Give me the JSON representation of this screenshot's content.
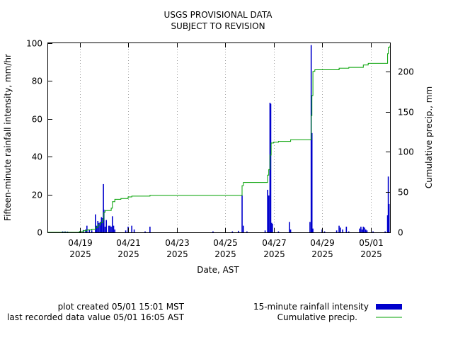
{
  "chart_data": {
    "type": "bar",
    "title_lines": [
      "USGS PROVISIONAL DATA",
      "SUBJECT TO REVISION"
    ],
    "xlabel": "Date, AST",
    "ylabel": "Fifteen-minute rainfall intensity, mm/hr",
    "y2label": "Cumulative precip., mm",
    "xlim_days": [
      0,
      14.1
    ],
    "ylim": [
      0,
      100
    ],
    "y2lim": [
      0,
      235
    ],
    "y_ticks": [
      0,
      20,
      40,
      60,
      80,
      100
    ],
    "y2_ticks": [
      0,
      50,
      100,
      150,
      200
    ],
    "x_ticks": [
      {
        "day": 1.3,
        "date": "04/19",
        "year": "2025"
      },
      {
        "day": 3.3,
        "date": "04/21",
        "year": "2025"
      },
      {
        "day": 5.3,
        "date": "04/23",
        "year": "2025"
      },
      {
        "day": 7.3,
        "date": "04/25",
        "year": "2025"
      },
      {
        "day": 9.3,
        "date": "04/27",
        "year": "2025"
      },
      {
        "day": 11.3,
        "date": "04/29",
        "year": "2025"
      },
      {
        "day": 13.3,
        "date": "05/01",
        "year": "2025"
      }
    ],
    "grid": true,
    "legend_position": "bottom-right",
    "series": [
      {
        "name": "15-minute rainfall intensity",
        "type": "bar",
        "color": "#0000cc",
        "axis": "left",
        "points": [
          [
            0.6,
            0.5
          ],
          [
            0.7,
            0.5
          ],
          [
            0.8,
            0.4
          ],
          [
            1.3,
            0.6
          ],
          [
            1.45,
            1.2
          ],
          [
            1.55,
            1.5
          ],
          [
            1.6,
            3.5
          ],
          [
            1.7,
            1.5
          ],
          [
            1.8,
            1.0
          ],
          [
            1.95,
            9.5
          ],
          [
            2.0,
            3.5
          ],
          [
            2.05,
            6.0
          ],
          [
            2.1,
            5.0
          ],
          [
            2.15,
            5.5
          ],
          [
            2.2,
            8.0
          ],
          [
            2.25,
            7.5
          ],
          [
            2.28,
            25.5
          ],
          [
            2.3,
            12.0
          ],
          [
            2.35,
            3.0
          ],
          [
            2.4,
            6.5
          ],
          [
            2.5,
            3.5
          ],
          [
            2.55,
            3.5
          ],
          [
            2.6,
            3.0
          ],
          [
            2.65,
            8.5
          ],
          [
            2.7,
            3.5
          ],
          [
            2.75,
            1.5
          ],
          [
            3.2,
            1.0
          ],
          [
            3.3,
            3.0
          ],
          [
            3.45,
            3.5
          ],
          [
            3.55,
            1.5
          ],
          [
            4.0,
            0.5
          ],
          [
            4.2,
            3.0
          ],
          [
            6.8,
            0.5
          ],
          [
            7.6,
            0.5
          ],
          [
            7.85,
            0.8
          ],
          [
            8.0,
            19.5
          ],
          [
            8.05,
            3.5
          ],
          [
            8.2,
            0.5
          ],
          [
            8.95,
            1.0
          ],
          [
            9.05,
            22.5
          ],
          [
            9.1,
            19.5
          ],
          [
            9.15,
            68.5
          ],
          [
            9.18,
            68.0
          ],
          [
            9.22,
            5.0
          ],
          [
            9.25,
            4.5
          ],
          [
            9.5,
            0.5
          ],
          [
            9.95,
            5.5
          ],
          [
            10.0,
            1.5
          ],
          [
            10.8,
            5.5
          ],
          [
            10.85,
            99.0
          ],
          [
            10.88,
            52.5
          ],
          [
            10.92,
            2.0
          ],
          [
            11.3,
            1.5
          ],
          [
            11.4,
            0.5
          ],
          [
            11.9,
            1.0
          ],
          [
            12.0,
            3.5
          ],
          [
            12.05,
            2.5
          ],
          [
            12.15,
            1.5
          ],
          [
            12.3,
            3.0
          ],
          [
            12.4,
            0.5
          ],
          [
            12.85,
            2.0
          ],
          [
            12.9,
            3.0
          ],
          [
            12.95,
            1.5
          ],
          [
            13.0,
            3.0
          ],
          [
            13.05,
            2.5
          ],
          [
            13.1,
            1.5
          ],
          [
            13.15,
            1.0
          ],
          [
            13.4,
            0.5
          ],
          [
            13.9,
            0.5
          ],
          [
            14.0,
            9.0
          ],
          [
            14.03,
            29.5
          ],
          [
            14.06,
            15.0
          ]
        ]
      },
      {
        "name": "Cumulative precip.",
        "type": "line",
        "color": "#00a000",
        "axis": "right",
        "points": [
          [
            0,
            0
          ],
          [
            1.2,
            0
          ],
          [
            1.3,
            1
          ],
          [
            1.45,
            2
          ],
          [
            1.6,
            3
          ],
          [
            1.8,
            4
          ],
          [
            1.95,
            6
          ],
          [
            2.05,
            9
          ],
          [
            2.15,
            12
          ],
          [
            2.25,
            16
          ],
          [
            2.3,
            25
          ],
          [
            2.35,
            27
          ],
          [
            2.6,
            30
          ],
          [
            2.65,
            38
          ],
          [
            2.75,
            41
          ],
          [
            3.0,
            42
          ],
          [
            3.2,
            42
          ],
          [
            3.3,
            44
          ],
          [
            3.45,
            45
          ],
          [
            4.0,
            45
          ],
          [
            4.2,
            46
          ],
          [
            7.9,
            46
          ],
          [
            8.0,
            58
          ],
          [
            8.05,
            62
          ],
          [
            8.9,
            62
          ],
          [
            9.05,
            71
          ],
          [
            9.1,
            78
          ],
          [
            9.15,
            96
          ],
          [
            9.2,
            111
          ],
          [
            9.3,
            112
          ],
          [
            9.5,
            113
          ],
          [
            10.0,
            115
          ],
          [
            10.8,
            115
          ],
          [
            10.85,
            145
          ],
          [
            10.88,
            170
          ],
          [
            10.92,
            200
          ],
          [
            11.0,
            202
          ],
          [
            11.9,
            202
          ],
          [
            12.0,
            204
          ],
          [
            12.4,
            205
          ],
          [
            12.85,
            205
          ],
          [
            13.0,
            208
          ],
          [
            13.2,
            210
          ],
          [
            13.95,
            210
          ],
          [
            14.0,
            222
          ],
          [
            14.03,
            230
          ],
          [
            14.1,
            232
          ]
        ]
      }
    ]
  },
  "footer": {
    "plot_created": "plot created 05/01 15:01 MST",
    "last_recorded": "last recorded data value 05/01 16:05 AST"
  }
}
